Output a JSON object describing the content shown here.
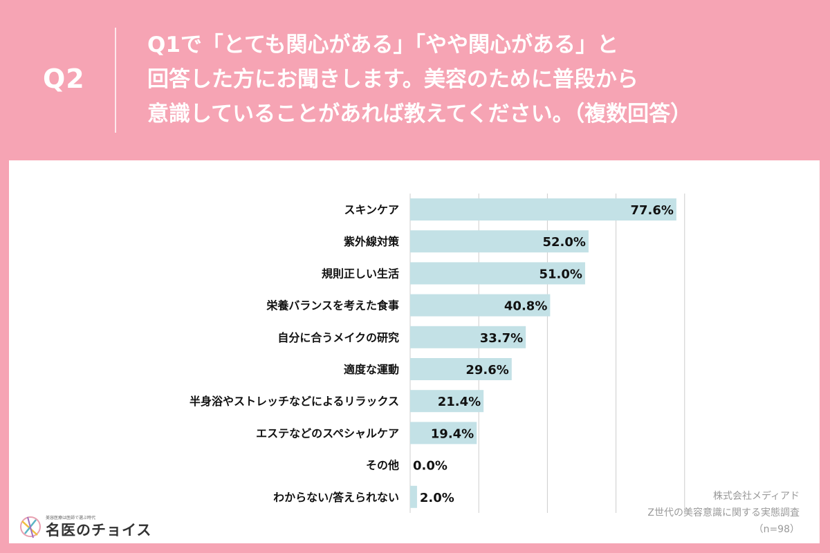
{
  "header": {
    "qnum": "Q2",
    "question_lines": [
      "Q1で「とても関心がある」「やや関心がある」と",
      "回答した方にお聞きします。美容のために普段から",
      "意識していることがあれば教えてください。（複数回答）"
    ]
  },
  "colors": {
    "background": "#f6a4b4",
    "bar": "#c3e1e6",
    "grid": "#cccccc",
    "text": "#111111"
  },
  "chart_data": {
    "type": "bar",
    "orientation": "horizontal",
    "categories": [
      "スキンケア",
      "紫外線対策",
      "規則正しい生活",
      "栄養バランスを考えた食事",
      "自分に合うメイクの研究",
      "適度な運動",
      "半身浴やストレッチなどによるリラックス",
      "エステなどのスペシャルケア",
      "その他",
      "わからない/答えられない"
    ],
    "values": [
      77.6,
      52.0,
      51.0,
      40.8,
      33.7,
      29.6,
      21.4,
      19.4,
      0.0,
      2.0
    ],
    "labels": [
      "77.6%",
      "52.0%",
      "51.0%",
      "40.8%",
      "33.7%",
      "29.6%",
      "21.4%",
      "19.4%",
      "0.0%",
      "2.0%"
    ],
    "xlim": [
      0,
      80
    ],
    "grid": true
  },
  "footer": {
    "company": "株式会社メディアド",
    "survey": "Z世代の美容意識に関する実態調査",
    "sample": "（n=98）"
  },
  "logo": {
    "tagline": "美容医療は医師で選ぶ時代",
    "name": "名医のチョイス",
    "icon": "choice-logo-icon"
  }
}
